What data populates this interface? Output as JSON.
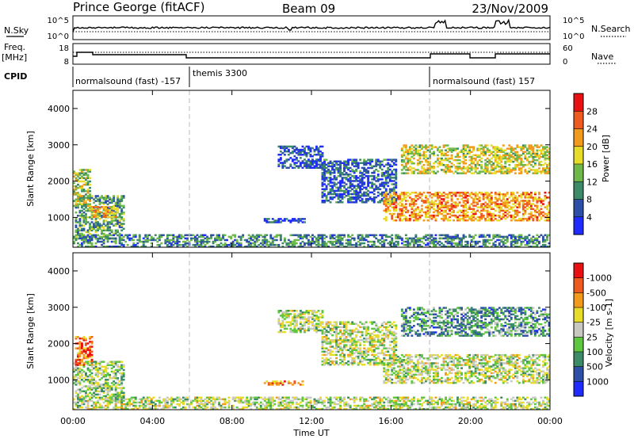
{
  "header": {
    "station": "Prince George (fitACF)",
    "beam": "Beam 09",
    "date": "23/Nov/2009"
  },
  "noise_panel": {
    "left_label": "N.Sky",
    "right_label": "N.Search",
    "left_ticks": [
      "10^5",
      "10^0"
    ],
    "right_ticks": [
      "10^5",
      "10^0"
    ]
  },
  "freq_panel": {
    "left_label_1": "Freq.",
    "left_label_2": "[MHz]",
    "right_label": "Nave",
    "left_ticks": [
      "18",
      "8"
    ],
    "right_ticks": [
      "60",
      "0"
    ]
  },
  "cpid": {
    "label": "CPID",
    "segments": [
      {
        "text": "normalsound (fast) -157",
        "start_hour": 0
      },
      {
        "text": "themis 3300",
        "start_hour": 6
      },
      {
        "text": "normalsound (fast) 157",
        "start_hour": 18
      }
    ]
  },
  "x_axis": {
    "label": "Time UT",
    "ticks": [
      "00:00",
      "04:00",
      "08:00",
      "12:00",
      "16:00",
      "20:00",
      "00:00"
    ]
  },
  "chart_data": [
    {
      "type": "heatmap",
      "quantity": "power",
      "ylabel": "Slant Range [km]",
      "ylim": [
        180,
        4500
      ],
      "yticks": [
        1000,
        2000,
        3000,
        4000
      ],
      "xlim": [
        0,
        24
      ],
      "colorbar": {
        "label": "Power [dB]",
        "tick_labels": [
          "4",
          "8",
          "12",
          "16",
          "20",
          "24",
          "28"
        ],
        "colors": [
          "#1f2bff",
          "#2e4fa8",
          "#3d8a68",
          "#6fb84a",
          "#e8dc2a",
          "#f29a1c",
          "#ef5a1e",
          "#e81010"
        ]
      },
      "regions": [
        {
          "t": [
            0.1,
            2.6
          ],
          "r": [
            400,
            1600
          ],
          "v": 0.35
        },
        {
          "t": [
            0.0,
            0.8
          ],
          "r": [
            1300,
            2300
          ],
          "v": 0.5
        },
        {
          "t": [
            0.9,
            2.3
          ],
          "r": [
            1000,
            1300
          ],
          "v": 0.65
        },
        {
          "t": [
            10.3,
            12.5
          ],
          "r": [
            2350,
            2950
          ],
          "v": 0.15
        },
        {
          "t": [
            12.5,
            16.2
          ],
          "r": [
            1400,
            2600
          ],
          "v": 0.2
        },
        {
          "t": [
            9.6,
            11.6
          ],
          "r": [
            850,
            950
          ],
          "v": 0.15
        },
        {
          "t": [
            15.6,
            24.0
          ],
          "r": [
            900,
            1700
          ],
          "v": 0.7
        },
        {
          "t": [
            16.5,
            24.0
          ],
          "r": [
            2200,
            3000
          ],
          "v": 0.55
        },
        {
          "t": [
            0.0,
            24.0
          ],
          "r": [
            180,
            520
          ],
          "v": 0.3
        }
      ]
    },
    {
      "type": "heatmap",
      "quantity": "velocity",
      "ylabel": "Slant Range [km]",
      "ylim": [
        180,
        4500
      ],
      "yticks": [
        1000,
        2000,
        3000,
        4000
      ],
      "xlim": [
        0,
        24
      ],
      "colorbar": {
        "label": "Velocity [m s-1]",
        "tick_labels": [
          "1000",
          "500",
          "100",
          "25",
          "-25",
          "-100",
          "-500",
          "-1000"
        ],
        "colors": [
          "#1f2bff",
          "#2e4fa8",
          "#3d8a68",
          "#5fc640",
          "#c8c8c0",
          "#e8dc2a",
          "#f29a1c",
          "#ef5a1e",
          "#e81010"
        ]
      },
      "regions": [
        {
          "t": [
            0.0,
            2.6
          ],
          "r": [
            400,
            1500
          ],
          "v": 0.45
        },
        {
          "t": [
            0.1,
            0.9
          ],
          "r": [
            1400,
            2200
          ],
          "v": 0.8
        },
        {
          "t": [
            10.3,
            12.5
          ],
          "r": [
            2300,
            2900
          ],
          "v": 0.5
        },
        {
          "t": [
            12.5,
            16.2
          ],
          "r": [
            1400,
            2600
          ],
          "v": 0.5
        },
        {
          "t": [
            9.6,
            11.6
          ],
          "r": [
            850,
            950
          ],
          "v": 0.75
        },
        {
          "t": [
            15.6,
            24.0
          ],
          "r": [
            900,
            1700
          ],
          "v": 0.5
        },
        {
          "t": [
            16.5,
            24.0
          ],
          "r": [
            2200,
            3000
          ],
          "v": 0.3
        },
        {
          "t": [
            0.0,
            24.0
          ],
          "r": [
            180,
            520
          ],
          "v": 0.5
        }
      ]
    }
  ]
}
